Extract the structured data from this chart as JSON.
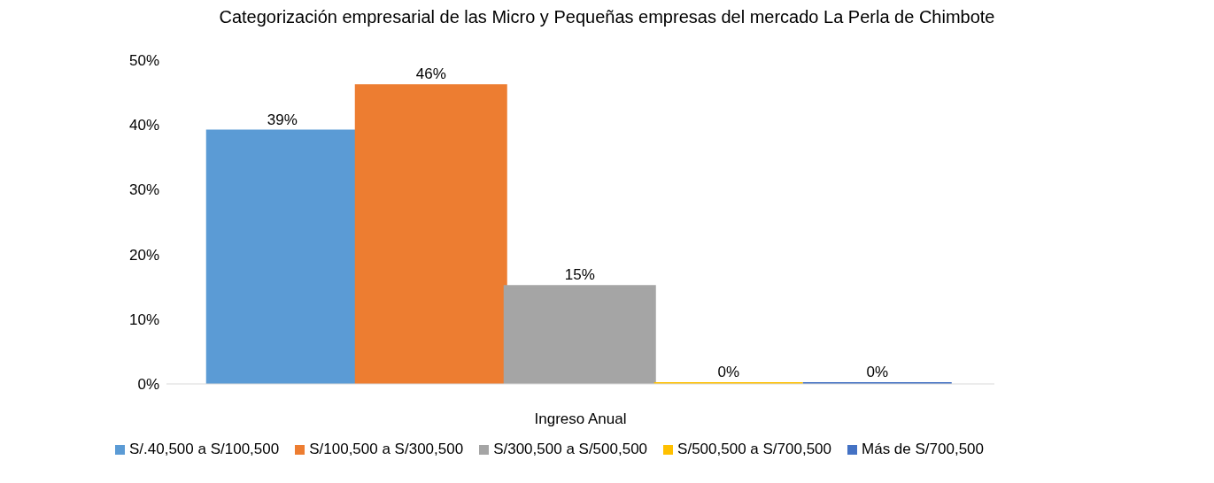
{
  "chart_data": {
    "type": "bar",
    "title": "Categorización empresarial de las Micro y Pequeñas empresas del mercado La Perla de Chimbote",
    "xlabel": "Ingreso Anual",
    "categories": [
      null
    ],
    "series": [
      {
        "name": "S/.40,500 a S/100,500",
        "color": "#5b9bd5",
        "values": [
          39
        ],
        "value_labels": [
          "39%"
        ]
      },
      {
        "name": "S/100,500 a S/300,500",
        "color": "#ed7d31",
        "values": [
          46
        ],
        "value_labels": [
          "46%"
        ]
      },
      {
        "name": "S/300,500 a S/500,500",
        "color": "#a5a5a5",
        "values": [
          15
        ],
        "value_labels": [
          "15%"
        ]
      },
      {
        "name": "S/500,500 a S/700,500",
        "color": "#ffc000",
        "values": [
          0
        ],
        "value_labels": [
          "0%"
        ]
      },
      {
        "name": "Más de S/700,500",
        "color": "#4472c4",
        "values": [
          0
        ],
        "value_labels": [
          "0%"
        ]
      }
    ],
    "ylim": [
      0,
      50
    ],
    "yticks": [
      {
        "value": 0,
        "label": "0%"
      },
      {
        "value": 10,
        "label": "10%"
      },
      {
        "value": 20,
        "label": "20%"
      },
      {
        "value": 30,
        "label": "30%"
      },
      {
        "value": 40,
        "label": "40%"
      },
      {
        "value": 50,
        "label": "50%"
      }
    ],
    "grid": false,
    "legend": "bottom"
  }
}
